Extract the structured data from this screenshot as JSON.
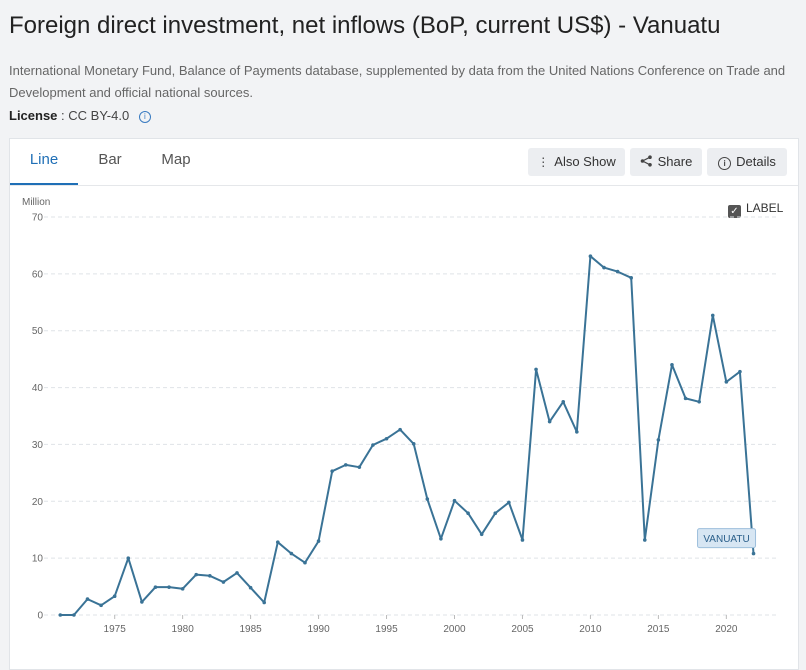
{
  "header": {
    "title": "Foreign direct investment, net inflows (BoP, current US$) - Vanuatu",
    "source": "International Monetary Fund, Balance of Payments database, supplemented by data from the United Nations Conference on Trade and Development and official national sources.",
    "license_label": "License",
    "license_value": ": CC BY-4.0"
  },
  "tabs": [
    {
      "label": "Line",
      "active": true
    },
    {
      "label": "Bar",
      "active": false
    },
    {
      "label": "Map",
      "active": false
    }
  ],
  "toolbar": {
    "also_show": "Also Show",
    "share": "Share",
    "details": "Details"
  },
  "label_toggle": {
    "text": "LABEL",
    "checked": true
  },
  "colors": {
    "line": "#3a7396",
    "accent": "#1f6fb6",
    "grid": "#dfe3e7",
    "end_label_bg": "#d7e6f3"
  },
  "chart_data": {
    "type": "line",
    "unit_label": "Million",
    "ylim": [
      0,
      70
    ],
    "yticks": [
      0,
      10,
      20,
      30,
      40,
      50,
      60,
      70
    ],
    "xticks": [
      1975,
      1980,
      1985,
      1990,
      1995,
      2000,
      2005,
      2010,
      2015,
      2020
    ],
    "grid": true,
    "series": [
      {
        "name": "VANUATU",
        "x": [
          1971,
          1972,
          1973,
          1974,
          1975,
          1976,
          1977,
          1978,
          1979,
          1980,
          1981,
          1982,
          1983,
          1984,
          1985,
          1986,
          1987,
          1988,
          1989,
          1990,
          1991,
          1992,
          1993,
          1994,
          1995,
          1996,
          1997,
          1998,
          1999,
          2000,
          2001,
          2002,
          2003,
          2004,
          2005,
          2006,
          2007,
          2008,
          2009,
          2010,
          2011,
          2012,
          2013,
          2014,
          2015,
          2016,
          2017,
          2018,
          2019,
          2020,
          2021,
          2022
        ],
        "values": [
          0,
          0,
          2.8,
          1.7,
          3.3,
          10,
          2.3,
          4.9,
          4.9,
          4.6,
          7.1,
          6.9,
          5.8,
          7.4,
          4.8,
          2.2,
          12.8,
          10.8,
          9.2,
          13,
          25.3,
          26.4,
          26,
          29.9,
          31,
          32.6,
          30.1,
          20.4,
          13.4,
          20.1,
          17.9,
          14.2,
          17.9,
          19.8,
          13.2,
          43.2,
          34,
          37.5,
          32.2,
          63.1,
          61.1,
          60.4,
          59.3,
          13.2,
          30.8,
          44,
          38.1,
          37.5,
          52.7,
          41,
          42.8,
          10.8
        ]
      }
    ]
  }
}
